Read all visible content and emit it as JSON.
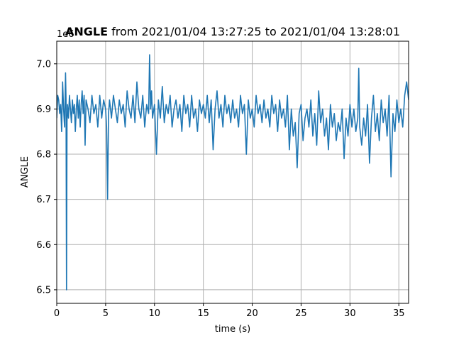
{
  "chart_data": {
    "type": "line",
    "title_bold": "ANGLE",
    "title_rest": " from 2021/01/04 13:27:25 to 2021/01/04 13:28:01",
    "xlabel": "time (s)",
    "ylabel": "ANGLE",
    "y_offset_label": "1e6",
    "xlim": [
      0,
      36
    ],
    "ylim": [
      6.47,
      7.05
    ],
    "xticks": [
      0,
      5,
      10,
      15,
      20,
      25,
      30,
      35
    ],
    "xtick_labels": [
      "0",
      "5",
      "10",
      "15",
      "20",
      "25",
      "30",
      "35"
    ],
    "yticks": [
      6.5,
      6.6,
      6.7,
      6.8,
      6.9,
      7.0
    ],
    "ytick_labels": [
      "6.5",
      "6.6",
      "6.7",
      "6.8",
      "6.9",
      "7.0"
    ],
    "grid": true,
    "line_color": "#1f77b4",
    "series": [
      {
        "x": [
          0.0,
          0.1,
          0.2,
          0.3,
          0.4,
          0.5,
          0.6,
          0.7,
          0.8,
          0.9,
          0.95,
          1.0,
          1.05,
          1.1,
          1.2,
          1.3,
          1.4,
          1.5,
          1.6,
          1.7,
          1.8,
          1.9,
          2.0,
          2.1,
          2.2,
          2.3,
          2.4,
          2.5,
          2.6,
          2.7,
          2.8,
          2.9,
          3.0,
          3.2,
          3.4,
          3.6,
          3.8,
          4.0,
          4.2,
          4.4,
          4.6,
          4.8,
          5.0,
          5.1,
          5.2,
          5.3,
          5.4,
          5.6,
          5.8,
          6.0,
          6.2,
          6.4,
          6.6,
          6.8,
          7.0,
          7.2,
          7.4,
          7.6,
          7.8,
          8.0,
          8.2,
          8.4,
          8.6,
          8.8,
          9.0,
          9.2,
          9.4,
          9.5,
          9.6,
          9.7,
          9.8,
          10.0,
          10.2,
          10.4,
          10.6,
          10.8,
          11.0,
          11.2,
          11.4,
          11.6,
          11.8,
          12.0,
          12.2,
          12.4,
          12.6,
          12.8,
          13.0,
          13.2,
          13.4,
          13.6,
          13.8,
          14.0,
          14.2,
          14.4,
          14.6,
          14.8,
          15.0,
          15.2,
          15.4,
          15.6,
          15.8,
          16.0,
          16.2,
          16.4,
          16.6,
          16.8,
          17.0,
          17.2,
          17.4,
          17.6,
          17.8,
          18.0,
          18.2,
          18.4,
          18.6,
          18.8,
          19.0,
          19.2,
          19.4,
          19.6,
          19.8,
          20.0,
          20.2,
          20.4,
          20.6,
          20.8,
          21.0,
          21.2,
          21.4,
          21.6,
          21.8,
          22.0,
          22.2,
          22.4,
          22.6,
          22.8,
          23.0,
          23.2,
          23.4,
          23.6,
          23.8,
          24.0,
          24.2,
          24.4,
          24.6,
          24.8,
          25.0,
          25.2,
          25.4,
          25.6,
          25.8,
          26.0,
          26.2,
          26.4,
          26.6,
          26.8,
          27.0,
          27.2,
          27.4,
          27.6,
          27.8,
          28.0,
          28.2,
          28.4,
          28.6,
          28.8,
          29.0,
          29.2,
          29.4,
          29.6,
          29.8,
          30.0,
          30.2,
          30.4,
          30.6,
          30.8,
          30.9,
          31.0,
          31.2,
          31.4,
          31.6,
          31.8,
          32.0,
          32.2,
          32.4,
          32.6,
          32.8,
          33.0,
          33.2,
          33.4,
          33.6,
          33.8,
          34.0,
          34.2,
          34.4,
          34.6,
          34.8,
          35.0,
          35.2,
          35.4,
          35.6,
          35.8,
          36.0
        ],
        "values": [
          6.88,
          6.93,
          6.92,
          6.89,
          6.91,
          6.85,
          6.96,
          6.9,
          6.86,
          6.98,
          6.92,
          6.5,
          6.87,
          6.91,
          6.88,
          6.93,
          6.9,
          6.87,
          6.92,
          6.89,
          6.91,
          6.85,
          6.9,
          6.93,
          6.88,
          6.92,
          6.86,
          6.91,
          6.94,
          6.89,
          6.93,
          6.82,
          6.92,
          6.9,
          6.87,
          6.93,
          6.89,
          6.91,
          6.86,
          6.93,
          6.88,
          6.92,
          6.9,
          6.86,
          6.7,
          6.89,
          6.92,
          6.88,
          6.93,
          6.9,
          6.87,
          6.92,
          6.89,
          6.91,
          6.86,
          6.94,
          6.9,
          6.88,
          6.93,
          6.87,
          6.96,
          6.9,
          6.88,
          6.93,
          6.86,
          6.91,
          6.89,
          7.02,
          6.9,
          6.94,
          6.88,
          6.91,
          6.8,
          6.92,
          6.88,
          6.95,
          6.87,
          6.91,
          6.89,
          6.93,
          6.86,
          6.9,
          6.92,
          6.88,
          6.91,
          6.85,
          6.93,
          6.89,
          6.91,
          6.86,
          6.93,
          6.88,
          6.9,
          6.85,
          6.92,
          6.89,
          6.91,
          6.88,
          6.93,
          6.87,
          6.92,
          6.81,
          6.9,
          6.94,
          6.88,
          6.91,
          6.86,
          6.93,
          6.89,
          6.91,
          6.87,
          6.92,
          6.88,
          6.9,
          6.86,
          6.93,
          6.89,
          6.91,
          6.8,
          6.92,
          6.88,
          6.9,
          6.86,
          6.93,
          6.89,
          6.91,
          6.87,
          6.92,
          6.88,
          6.9,
          6.86,
          6.93,
          6.89,
          6.91,
          6.85,
          6.92,
          6.88,
          6.9,
          6.86,
          6.93,
          6.81,
          6.9,
          6.84,
          6.87,
          6.77,
          6.89,
          6.91,
          6.83,
          6.88,
          6.9,
          6.86,
          6.92,
          6.84,
          6.89,
          6.82,
          6.94,
          6.87,
          6.9,
          6.84,
          6.88,
          6.81,
          6.91,
          6.86,
          6.89,
          6.83,
          6.87,
          6.85,
          6.9,
          6.79,
          6.88,
          6.84,
          6.91,
          6.86,
          6.9,
          6.85,
          6.88,
          6.99,
          6.86,
          6.82,
          6.88,
          6.84,
          6.91,
          6.78,
          6.88,
          6.93,
          6.85,
          6.89,
          6.83,
          6.92,
          6.87,
          6.9,
          6.84,
          6.93,
          6.75,
          6.89,
          6.85,
          6.92,
          6.87,
          6.9,
          6.86,
          6.93,
          6.96,
          6.92
        ]
      }
    ]
  }
}
